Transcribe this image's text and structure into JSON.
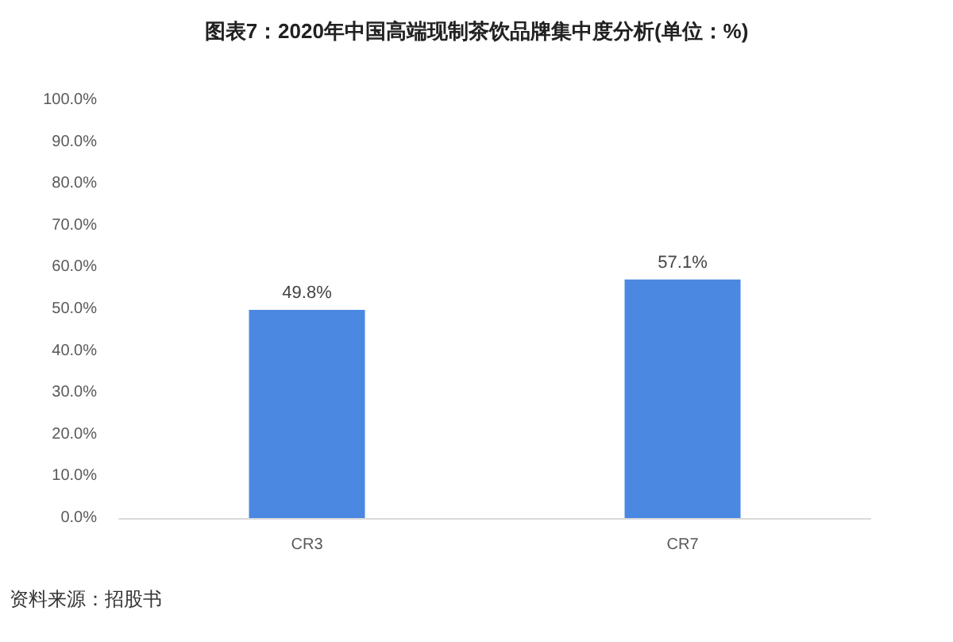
{
  "chart_data": {
    "type": "bar",
    "title": "图表7：2020年中国高端现制茶饮品牌集中度分析(单位：%)",
    "categories": [
      "CR3",
      "CR7"
    ],
    "values": [
      49.8,
      57.1
    ],
    "color": "#4a88e2",
    "value_labels": [
      "49.8%",
      "57.1%"
    ],
    "ylim": [
      0,
      100
    ],
    "yticks": [
      {
        "value": 0,
        "label": "0.0%"
      },
      {
        "value": 10,
        "label": "10.0%"
      },
      {
        "value": 20,
        "label": "20.0%"
      },
      {
        "value": 30,
        "label": "30.0%"
      },
      {
        "value": 40,
        "label": "40.0%"
      },
      {
        "value": 50,
        "label": "50.0%"
      },
      {
        "value": 60,
        "label": "60.0%"
      },
      {
        "value": 70,
        "label": "70.0%"
      },
      {
        "value": 80,
        "label": "80.0%"
      },
      {
        "value": 90,
        "label": "90.0%"
      },
      {
        "value": 100,
        "label": "100.0%"
      }
    ],
    "grid": false,
    "annotations": [
      "资料来源：招股书"
    ]
  }
}
